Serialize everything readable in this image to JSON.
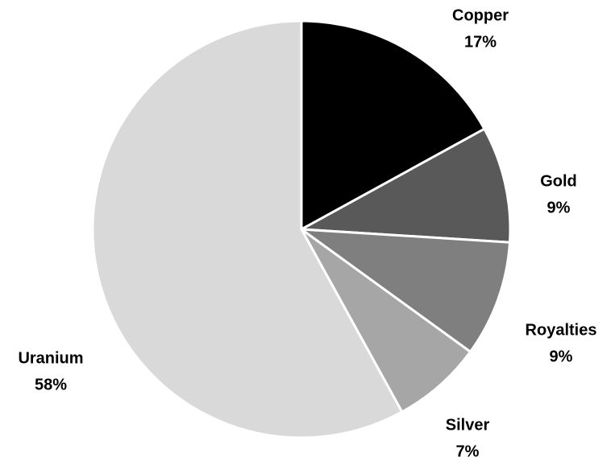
{
  "chart_data": {
    "type": "pie",
    "title": "",
    "start_angle_deg": 0,
    "direction": "clockwise",
    "slices": [
      {
        "label": "Copper",
        "value": 17,
        "value_text": "17%",
        "color": "#000000"
      },
      {
        "label": "Gold",
        "value": 9,
        "value_text": "9%",
        "color": "#595959"
      },
      {
        "label": "Royalties",
        "value": 9,
        "value_text": "9%",
        "color": "#7f7f7f"
      },
      {
        "label": "Silver",
        "value": 7,
        "value_text": "7%",
        "color": "#a6a6a6"
      },
      {
        "label": "Uranium",
        "value": 58,
        "value_text": "58%",
        "color": "#d9d9d9"
      }
    ]
  }
}
